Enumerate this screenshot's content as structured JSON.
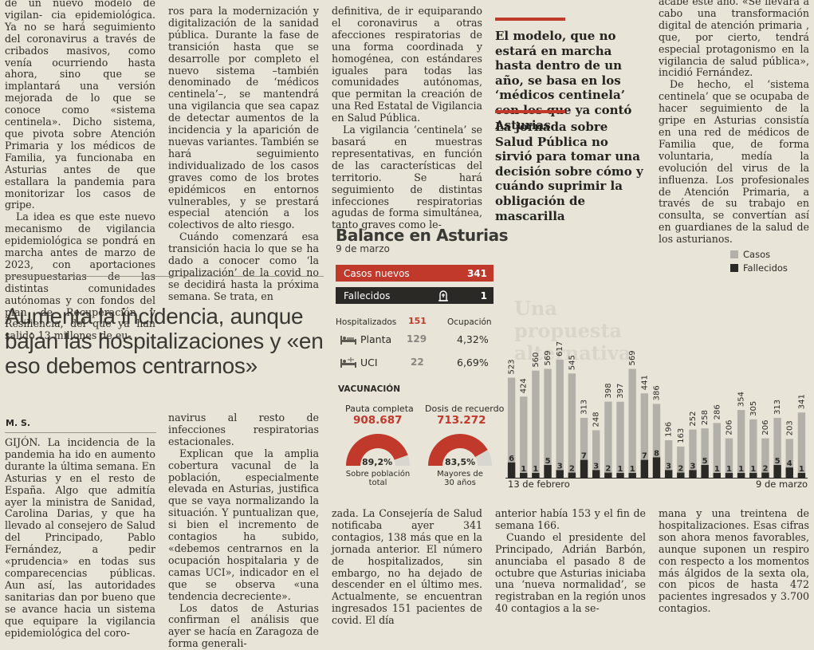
{
  "article_top": {
    "col1": [
      {
        "text": "de un nuevo modelo de vigilan- cia epidemiológica. Ya no se hará seguimiento del coronavirus a través de cribados masivos, como venía ocurriendo hasta ahora, sino que se implantará una versión mejorada de lo que se conoce como «sistema centinela». Dicho sistema, que pivota sobre Atención Primaria y los médicos de Familia, ya funcionaba en Asturias antes de que estallara la pandemia para monitorizar los casos de gripe.",
        "indent": false
      },
      {
        "text": "La idea es que este nuevo mecanismo de vigilancia epidemiológica se pondrá en marcha antes de marzo de 2023, con aportaciones presupuestarias de las distintas comunidades autónomas y con fondos del plan de Recuperación y Resiliencia, del que ya han salido 13 millones de eu-",
        "indent": true
      }
    ],
    "col2": [
      {
        "text": "ros para la modernización y digitalización de la sanidad pública. Durante la fase de transición hasta que se desarrolle por completo el nuevo sistema –también denominado de ‘médicos centinela’–, se mantendrá una vigilancia que sea capaz de detectar aumentos de la incidencia y la aparición de nuevas variantes. También se hará seguimiento individualizado de los casos graves como de los brotes epidémicos en entornos vulnerables, y se prestará especial atención a los colectivos de alto riesgo.",
        "indent": false
      },
      {
        "text": "Cuándo comenzará esa transición hacia lo que se ha dado a conocer como ‘la gripalización’ de la covid no se decidirá hasta la próxima semana. Se trata, en",
        "indent": true
      }
    ],
    "col3": [
      {
        "text": "definitiva, de ir equiparando el coronavirus a otras afecciones respiratorias de una forma coordinada y homogénea, con estándares iguales para todas las comunidades autónomas, que permitan la creación de una Red Estatal de Vigilancia en Salud Pública.",
        "indent": false
      },
      {
        "text": "La vigilancia ‘centinela’ se basará en muestras representativas, en función de las características del territorio. Se hará seguimiento de distintas infecciones respiratorias agudas de forma simultánea, tanto graves como le-",
        "indent": true
      }
    ],
    "pull1": "El modelo, que no estará en marcha hasta dentro de un año, se basa en los ‘médicos centinela’ con los que ya contó Asturias",
    "pull2": "La jornada sobre Salud Pública no sirvió para tomar una decisión sobre cómo y cuándo suprimir la obligación de mascarilla",
    "col5": [
      {
        "text": "acabe este año. «Se llevará a cabo una transformación digital de atención primaria , que, por cierto, tendrá especial protagonismo en la vigilancia de salud pública», incidió Fernández.",
        "indent": false
      },
      {
        "text": "De hecho, el ‘sistema centinela’ que se ocupaba de hacer seguimiento de la gripe en Asturias consistía en una red de médicos de Familia que, de forma voluntaria, medía la evolución del virus de la influenza. Los profesionales de Atención Primaria, a través de su trabajo en consulta, se convertían así en guardianes de la salud de los asturianos.",
        "indent": true
      }
    ]
  },
  "article_bottom": {
    "headline": "Aumenta la incidencia, aunque bajan las hospitalizaciones y «en eso debemos centrarnos»",
    "byline": "M. S.",
    "col1": "GIJÓN. La incidencia de la pandemia ha ido en aumento durante la última semana. En Asturias y en el resto de España. Algo que admitía ayer la ministra de Sanidad, Carolina Darias, y que ha llevado al consejero de Salud del Principado, Pablo Fernández, a pedir «prudencia» en todas sus comparecencias públicas. Aun así, las autoridades sanitarias dan por bueno que se avance hacia un sistema que equipare la vigilancia epidemiológica del coro-",
    "col2": [
      {
        "text": "navirus al resto de infecciones respiratorias estacionales.",
        "indent": false
      },
      {
        "text": "Explican que la amplia cobertura vacunal de la población, especialmente elevada en Asturias, justifica que se vaya normalizando la situación. Y puntualizan que, si bien el incremento de contagios ha subido, «debemos centrarnos en la ocupación hospitalaria y de camas UCI», indicador en el que se observa «una tendencia decreciente».",
        "indent": true
      },
      {
        "text": "Los datos de Asturias confirman el análisis que ayer se hacía en Zaragoza de forma generali-",
        "indent": true
      }
    ],
    "col3": "zada. La Consejería de Salud notificaba ayer 341 contagios, 138 más que en la jornada anterior. El número de hospitalizados, sin embargo, no ha dejado de descender en el último mes. Actualmente, se encuentran ingresados 151 pacientes de covid. El día",
    "col4": [
      {
        "text": "anterior había 153 y el fin de semana 166.",
        "indent": false
      },
      {
        "text": "Cuando el presidente del Principado, Adrián Barbón, anunciaba el pasado 8 de octubre que Asturias iniciaba una ‘nueva normalidad’, se registraban en la región unos 40 contagios a la se-",
        "indent": true
      }
    ],
    "col5": "mana y una treintena de hospitalizaciones. Esas cifras son ahora menos favorables, aunque suponen un respiro con respecto a los momentos más álgidos de la sexta ola, con picos de hasta 472 pacientes ingresados y 3.700 contagios."
  },
  "ghost_header": {
    "lines": [
      "Una propuesta",
      "alternativa"
    ]
  },
  "infographic": {
    "title": "Balance en Asturias",
    "date": "9 de marzo",
    "casos_label": "Casos nuevos",
    "casos_value": "341",
    "fallecidos_label": "Fallecidos",
    "fallecidos_value": "1",
    "hosp_label": "Hospitalizados",
    "hosp_value": "151",
    "ocupacion_label": "Ocupación",
    "planta_label": "Planta",
    "planta_value": "129",
    "planta_pct": "4,32%",
    "uci_label": "UCI",
    "uci_value": "22",
    "uci_pct": "6,69%",
    "vac_title": "VACUNACIÓN",
    "pauta_label": "Pauta completa",
    "pauta_value": "908.687",
    "pauta_pct": "89,2%",
    "pauta_pct_num": 89.2,
    "pauta_sub1": "Sobre población",
    "pauta_sub2": "total",
    "recuerdo_label": "Dosis de recuerdo",
    "recuerdo_value": "713.272",
    "recuerdo_pct": "83,5%",
    "recuerdo_pct_num": 83.5,
    "recuerdo_sub1": "Mayores de",
    "recuerdo_sub2": "30 años",
    "colors": {
      "red": "#c0392b",
      "dark": "#2b2926",
      "grey": "#a9a6a0",
      "light": "#d9d6cf"
    }
  },
  "chart_data": {
    "type": "bar",
    "legend": [
      "Casos",
      "Fallecidos"
    ],
    "legend_position": "top-right",
    "x_start_label": "13 de febrero",
    "x_end_label": "9 de marzo",
    "series": [
      {
        "name": "Casos",
        "values": [
          523,
          424,
          560,
          569,
          617,
          545,
          313,
          248,
          398,
          397,
          569,
          441,
          386,
          196,
          163,
          252,
          258,
          286,
          206,
          354,
          305,
          206,
          313,
          203,
          341
        ]
      },
      {
        "name": "Fallecidos",
        "values": [
          6,
          1,
          1,
          5,
          3,
          2,
          7,
          3,
          2,
          1,
          1,
          7,
          8,
          3,
          2,
          3,
          5,
          1,
          1,
          1,
          1,
          2,
          5,
          4,
          1
        ]
      }
    ],
    "colors": {
      "Casos": "#b3b0aa",
      "Fallecidos": "#2b2926"
    }
  }
}
